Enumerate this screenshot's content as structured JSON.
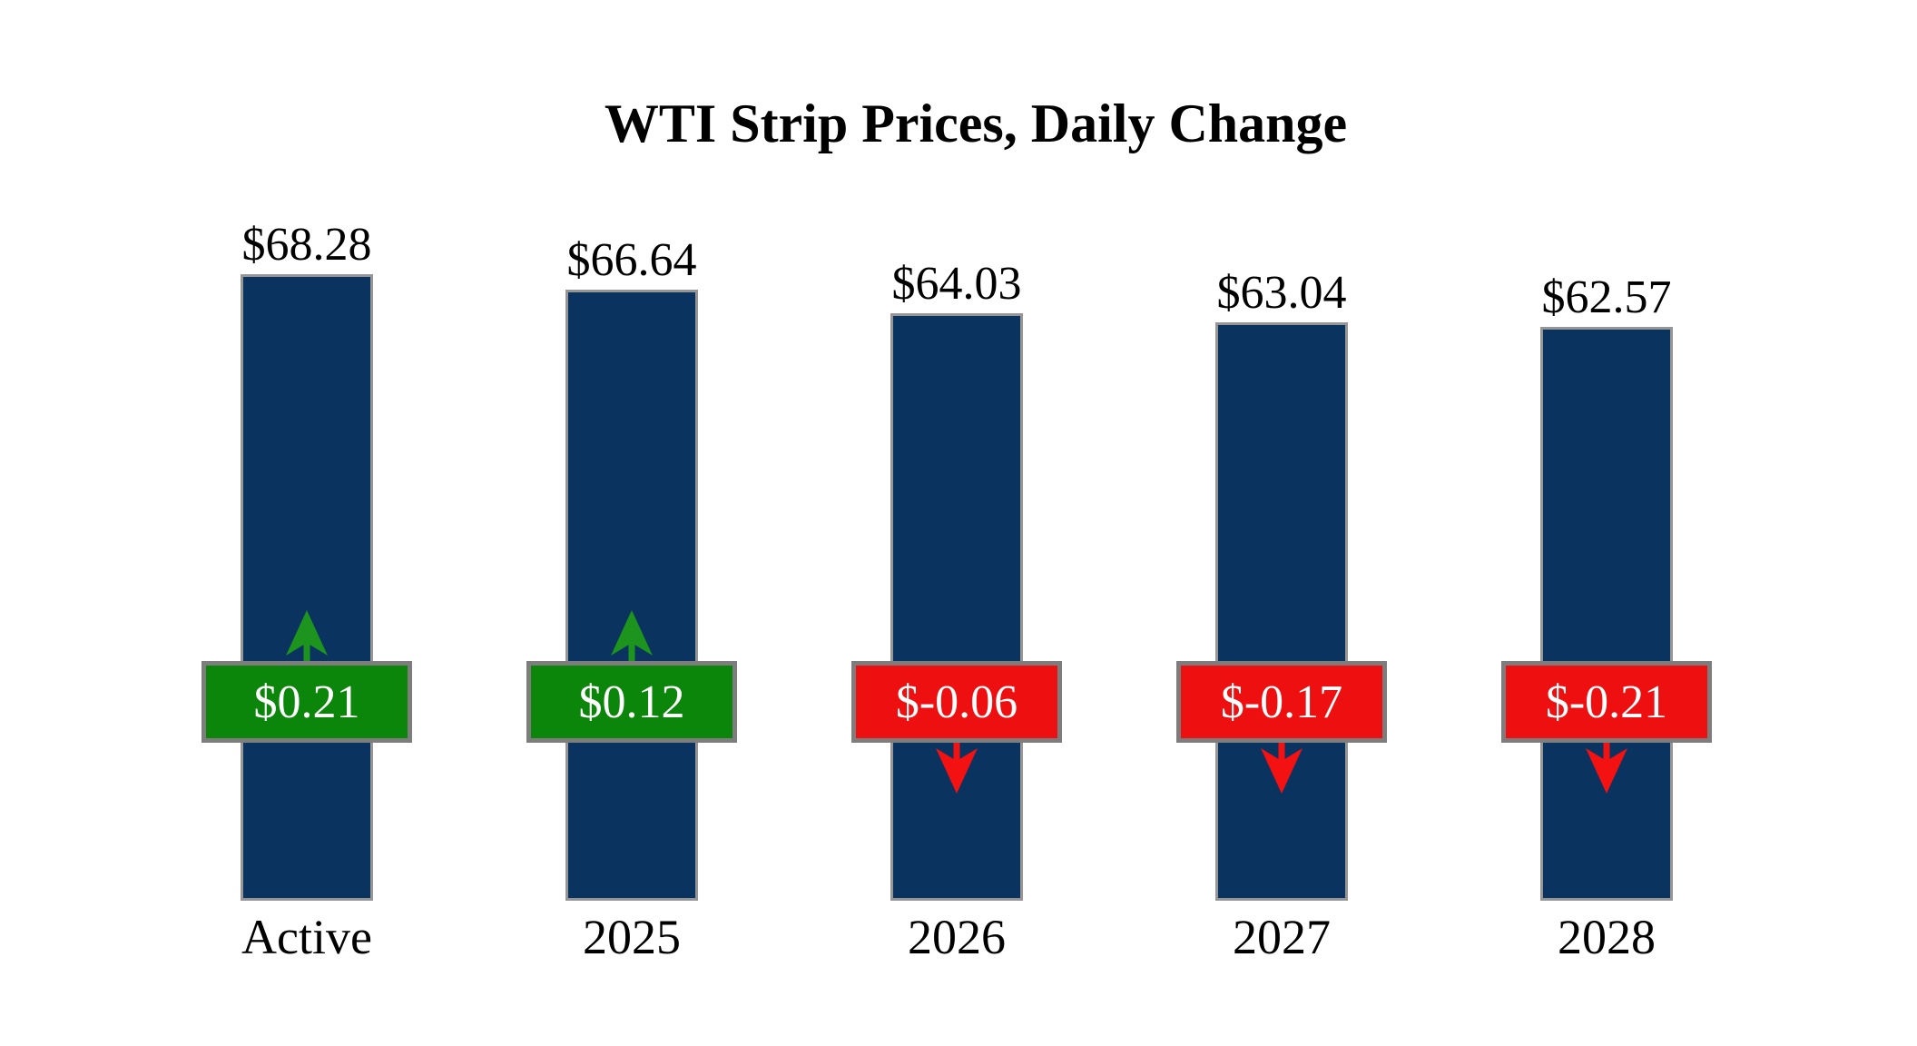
{
  "chart_data": {
    "type": "bar",
    "title": "WTI Strip Prices, Daily Change",
    "categories": [
      "Active",
      "2025",
      "2026",
      "2027",
      "2028"
    ],
    "series": [
      {
        "name": "WTI Strip Price",
        "values": [
          68.28,
          66.64,
          64.03,
          63.04,
          62.57
        ]
      },
      {
        "name": "Daily Change",
        "values": [
          0.21,
          0.12,
          -0.06,
          -0.17,
          -0.21
        ]
      }
    ],
    "price_labels": [
      "$68.28",
      "$66.64",
      "$64.03",
      "$63.04",
      "$62.57"
    ],
    "change_labels": [
      "$0.21",
      "$0.12",
      "$-0.06",
      "$-0.17",
      "$-0.21"
    ],
    "change_directions": [
      "up",
      "up",
      "down",
      "down",
      "down"
    ],
    "ylim": [
      0,
      70
    ],
    "grid": false,
    "legend": "none",
    "colors": {
      "bar": "#0a3360",
      "bar_border": "#969696",
      "positive": "#0b860b",
      "positive_arrow": "#1d941d",
      "negative": "#ee1010",
      "negative_arrow": "#f31111",
      "badge_border": "#7d7d7d",
      "badge_text": "#ffffff",
      "label_text": "#000000",
      "background": "#ffffff"
    }
  }
}
